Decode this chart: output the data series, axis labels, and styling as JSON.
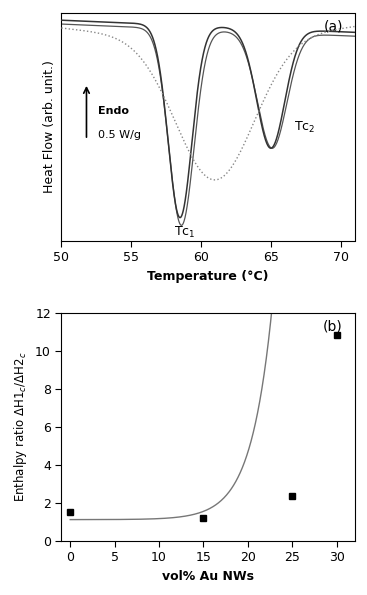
{
  "panel_a": {
    "label": "(a)",
    "xlabel": "Temperature (°C)",
    "ylabel": "Heat Flow (arb. unit.)",
    "xlim": [
      50,
      71
    ],
    "xticks": [
      50,
      55,
      60,
      65,
      70
    ],
    "tc1_label": "Tc$_1$",
    "tc2_label": "Tc$_2$",
    "tc1_x": 58.8,
    "tc2_x": 65.2,
    "endo_text1": "Endo",
    "endo_text2": "0.5 W/g"
  },
  "panel_b": {
    "label": "(b)",
    "xlabel": "vol% Au NWs",
    "ylabel": "Enthalpy ratio $\\Delta$H1$_c$/$\\Delta$H2$_c$",
    "xlim": [
      -1,
      32
    ],
    "ylim": [
      0,
      12
    ],
    "xticks": [
      0,
      5,
      10,
      15,
      20,
      25,
      30
    ],
    "yticks": [
      0,
      2,
      4,
      6,
      8,
      10,
      12
    ],
    "data_x": [
      0,
      15,
      25,
      30
    ],
    "data_y": [
      1.5,
      1.2,
      2.35,
      10.8
    ],
    "marker_color": "#111111",
    "line_color": "#777777"
  }
}
